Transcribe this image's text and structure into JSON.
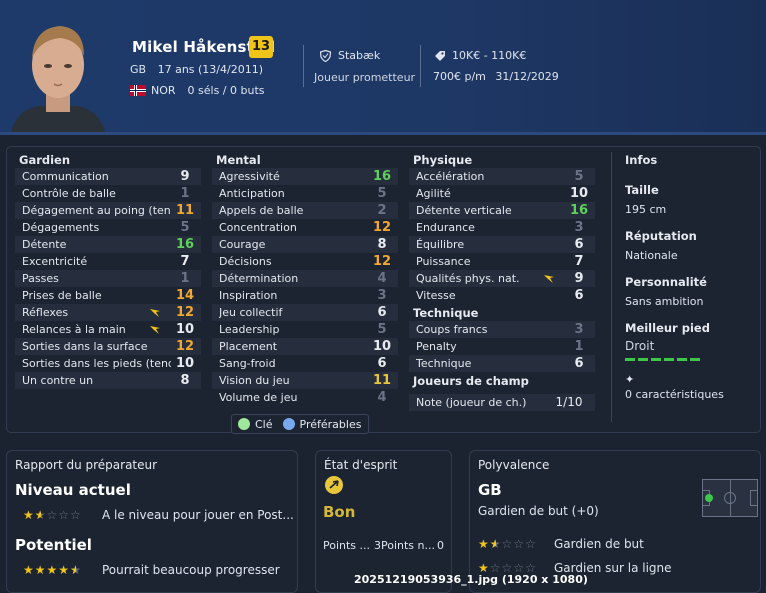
{
  "colors": {
    "accent_yellow": "#f0c419",
    "green": "#5ed15a",
    "orange": "#f0a830",
    "grey": "#6b7487",
    "blue_pref": "#7aa8ee",
    "green_key": "#9ee89b"
  },
  "player": {
    "name": "Mikel Håkenstad",
    "ca": "13",
    "position": "GB",
    "age": "17 ans (13/4/2011)",
    "nation": "NOR",
    "caps": "0 séls / 0 buts",
    "club": "Stabæk",
    "status": "Joueur prometteur",
    "value": "10K€ - 110K€",
    "wage": "700€ p/m",
    "contract_end": "31/12/2029"
  },
  "gardien": {
    "title": "Gardien",
    "rows": [
      {
        "label": "Communication",
        "value": "9",
        "tone": "white"
      },
      {
        "label": "Contrôle de balle",
        "value": "1",
        "tone": "grey"
      },
      {
        "label": "Dégagement au poing (tendance)",
        "value": "11",
        "tone": "orange"
      },
      {
        "label": "Dégagements",
        "value": "5",
        "tone": "grey"
      },
      {
        "label": "Détente",
        "value": "16",
        "tone": "green"
      },
      {
        "label": "Excentricité",
        "value": "7",
        "tone": "white"
      },
      {
        "label": "Passes",
        "value": "1",
        "tone": "grey"
      },
      {
        "label": "Prises de balle",
        "value": "14",
        "tone": "orange"
      },
      {
        "label": "Réflexes",
        "value": "12",
        "tone": "orange",
        "arrow": true
      },
      {
        "label": "Relances à la main",
        "value": "10",
        "tone": "white",
        "arrow": true
      },
      {
        "label": "Sorties dans la surface",
        "value": "12",
        "tone": "orange"
      },
      {
        "label": "Sorties dans les pieds (tendance)",
        "value": "10",
        "tone": "white"
      },
      {
        "label": "Un contre un",
        "value": "8",
        "tone": "white"
      }
    ]
  },
  "mental": {
    "title": "Mental",
    "rows": [
      {
        "label": "Agressivité",
        "value": "16",
        "tone": "green"
      },
      {
        "label": "Anticipation",
        "value": "5",
        "tone": "grey"
      },
      {
        "label": "Appels de balle",
        "value": "2",
        "tone": "grey"
      },
      {
        "label": "Concentration",
        "value": "12",
        "tone": "orange"
      },
      {
        "label": "Courage",
        "value": "8",
        "tone": "white"
      },
      {
        "label": "Décisions",
        "value": "12",
        "tone": "orange"
      },
      {
        "label": "Détermination",
        "value": "4",
        "tone": "grey"
      },
      {
        "label": "Inspiration",
        "value": "3",
        "tone": "grey"
      },
      {
        "label": "Jeu collectif",
        "value": "6",
        "tone": "white"
      },
      {
        "label": "Leadership",
        "value": "5",
        "tone": "grey"
      },
      {
        "label": "Placement",
        "value": "10",
        "tone": "white"
      },
      {
        "label": "Sang-froid",
        "value": "6",
        "tone": "white"
      },
      {
        "label": "Vision du jeu",
        "value": "11",
        "tone": "yellow"
      },
      {
        "label": "Volume de jeu",
        "value": "4",
        "tone": "grey"
      }
    ]
  },
  "physique": {
    "title": "Physique",
    "rows": [
      {
        "label": "Accélération",
        "value": "5",
        "tone": "grey"
      },
      {
        "label": "Agilité",
        "value": "10",
        "tone": "white"
      },
      {
        "label": "Détente verticale",
        "value": "16",
        "tone": "green"
      },
      {
        "label": "Endurance",
        "value": "3",
        "tone": "grey"
      },
      {
        "label": "Équilibre",
        "value": "6",
        "tone": "white"
      },
      {
        "label": "Puissance",
        "value": "7",
        "tone": "white"
      },
      {
        "label": "Qualités phys. nat.",
        "value": "9",
        "tone": "white",
        "arrow": true
      },
      {
        "label": "Vitesse",
        "value": "6",
        "tone": "white"
      }
    ]
  },
  "technique": {
    "title": "Technique",
    "rows": [
      {
        "label": "Coups francs",
        "value": "3",
        "tone": "grey"
      },
      {
        "label": "Penalty",
        "value": "1",
        "tone": "grey"
      },
      {
        "label": "Technique",
        "value": "6",
        "tone": "white"
      }
    ]
  },
  "joueurs_de_champ": {
    "title": "Joueurs de champ",
    "label": "Note (joueur de ch.)",
    "value": "1/10"
  },
  "legend": {
    "key": "Clé",
    "preferred": "Préférables"
  },
  "infos": {
    "title": "Infos",
    "height_label": "Taille",
    "height": "195 cm",
    "reputation_label": "Réputation",
    "reputation": "Nationale",
    "personality_label": "Personnalité",
    "personality": "Sans ambition",
    "foot_label": "Meilleur pied",
    "foot": "Droit",
    "traits_count": "0 caractéristiques"
  },
  "coach_report": {
    "title": "Rapport du préparateur",
    "current_label": "Niveau actuel",
    "current_stars": 1.5,
    "current_text": "A le niveau pour jouer en Post...",
    "potential_label": "Potentiel",
    "potential_stars": 4.5,
    "potential_text": "Pourrait beaucoup progresser"
  },
  "state_of_mind": {
    "title": "État d'esprit",
    "value": "Bon",
    "points_a": "Points ...",
    "points_b": "3Points n...",
    "points_c": "0"
  },
  "polyvalence": {
    "title": "Polyvalence",
    "position": "GB",
    "role": "Gardien de but (+0)",
    "ratings": [
      {
        "label": "Gardien de but",
        "stars": 1.5
      },
      {
        "label": "Gardien sur la ligne",
        "stars": 1
      }
    ]
  },
  "caption": "20251219053936_1.jpg (1920 x 1080)"
}
